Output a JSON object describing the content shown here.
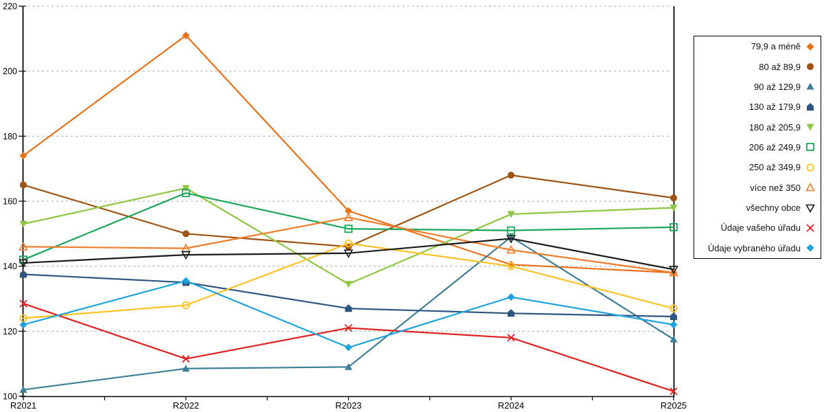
{
  "chart_data": {
    "type": "line",
    "title": "",
    "categories": [
      "R2021",
      "R2022",
      "R2023",
      "R2024",
      "R2025"
    ],
    "y_axis": {
      "min": 100,
      "max": 220,
      "step": 20,
      "tick_labels": [
        "100",
        "120",
        "140",
        "160",
        "180",
        "200",
        "220"
      ]
    },
    "grid": "horizontal-dotted",
    "legend_position": "right",
    "series": [
      {
        "name": "79,9 a méně",
        "color": "#E8711A",
        "marker": "diamond",
        "values": [
          174,
          211,
          157,
          140.5,
          138
        ]
      },
      {
        "name": "80 až 89,9",
        "color": "#9E5415",
        "marker": "circle",
        "values": [
          165,
          150,
          146,
          168,
          161
        ]
      },
      {
        "name": "90 až 129,9",
        "color": "#3D7F99",
        "marker": "triangle-up",
        "values": [
          102,
          108.5,
          109,
          149,
          117.5
        ]
      },
      {
        "name": "130 až 179,9",
        "color": "#2E5680",
        "marker": "pentagon",
        "values": [
          137.5,
          135,
          127,
          125.5,
          124.5
        ]
      },
      {
        "name": "180 až 205,9",
        "color": "#8CC643",
        "marker": "triangle-down",
        "values": [
          153,
          164,
          134.5,
          156,
          158
        ]
      },
      {
        "name": "206 až 249,9",
        "color": "#1CA65B",
        "marker": "square-open",
        "values": [
          142,
          162.5,
          151.5,
          151,
          152
        ]
      },
      {
        "name": "250 až 349,9",
        "color": "#FFC224",
        "marker": "circle-open",
        "values": [
          124,
          128,
          147,
          140,
          127
        ]
      },
      {
        "name": "více než 350",
        "color": "#EF7D2C",
        "marker": "triangle-up-open",
        "values": [
          146,
          145.5,
          155,
          145,
          138
        ]
      },
      {
        "name": "všechny obce",
        "color": "#1A1A1A",
        "marker": "triangle-down-open",
        "values": [
          141,
          143.5,
          144,
          148.5,
          139
        ]
      },
      {
        "name": "Údaje vašeho úřadu",
        "color": "#E02020",
        "marker": "x",
        "values": [
          128.5,
          111.5,
          121,
          118,
          101.5
        ]
      },
      {
        "name": "Údaje vybraného úřadu",
        "color": "#1FA1DD",
        "marker": "diamond",
        "values": [
          122,
          135.5,
          115,
          130.5,
          122
        ]
      }
    ]
  },
  "style": {
    "grid_color": "#AAAAAA",
    "axis_color": "#000000",
    "label_color": "#000000"
  }
}
